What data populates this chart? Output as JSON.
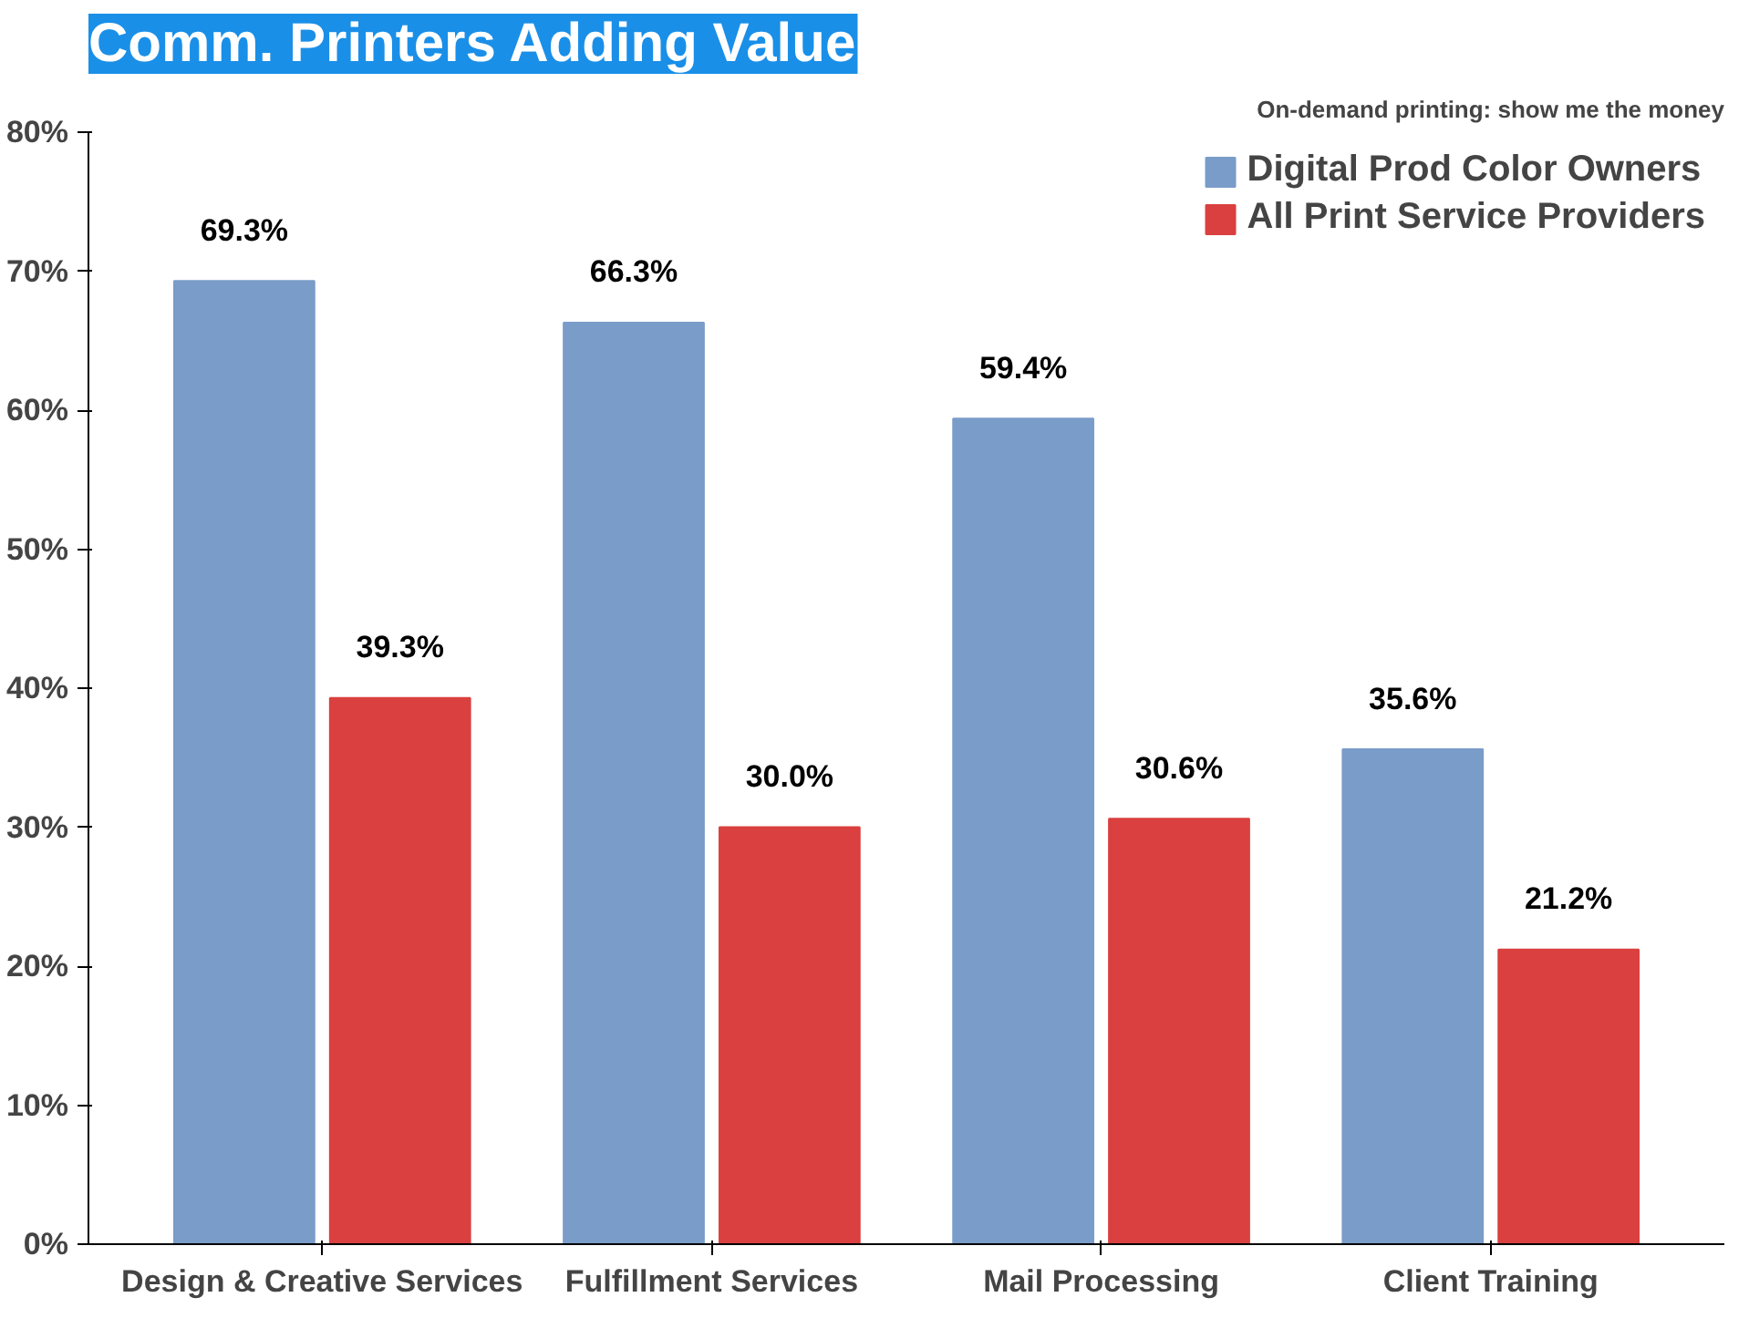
{
  "chart_data": {
    "type": "bar",
    "title": "Comm. Printers Adding Value",
    "subtitle": "On-demand printing: show me the money",
    "categories": [
      "Design & Creative Services",
      "Fulfillment Services",
      "Mail Processing",
      "Client Training"
    ],
    "series": [
      {
        "name": "Digital Prod Color Owners",
        "color": "#7a9cc8",
        "values": [
          69.3,
          66.3,
          59.4,
          35.6
        ],
        "value_labels": [
          "69.3%",
          "66.3%",
          "59.4%",
          "35.6%"
        ]
      },
      {
        "name": "All Print Service Providers",
        "color": "#d9403f",
        "values": [
          39.3,
          30.0,
          30.6,
          21.2
        ],
        "value_labels": [
          "39.3%",
          "30.0%",
          "30.6%",
          "21.2%"
        ]
      }
    ],
    "ylim": [
      0,
      80
    ],
    "yticks": [
      {
        "value": 0,
        "label": "0%"
      },
      {
        "value": 10,
        "label": "10%"
      },
      {
        "value": 20,
        "label": "20%"
      },
      {
        "value": 30,
        "label": "30%"
      },
      {
        "value": 40,
        "label": "40%"
      },
      {
        "value": 50,
        "label": "50%"
      },
      {
        "value": 60,
        "label": "60%"
      },
      {
        "value": 70,
        "label": "70%"
      },
      {
        "value": 80,
        "label": "80%"
      }
    ],
    "grid": false,
    "legend": "top right"
  }
}
